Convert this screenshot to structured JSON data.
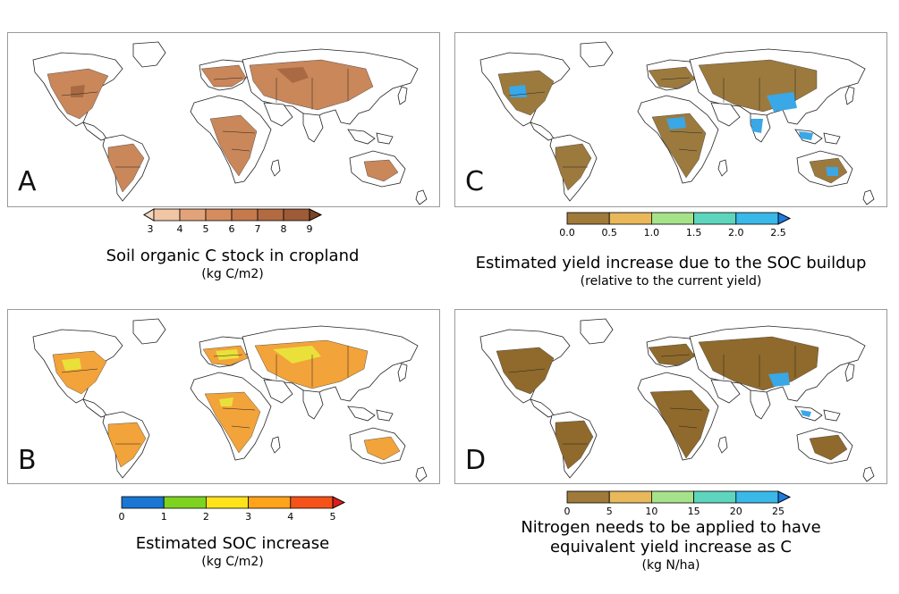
{
  "panels": {
    "A": {
      "letter": "A",
      "title": "Soil organic C stock in cropland",
      "unit": "(kg C/m2)",
      "colorbar": {
        "ticks": [
          "3",
          "4",
          "5",
          "6",
          "7",
          "8",
          "9"
        ],
        "colors": [
          "#f1c6a4",
          "#e3a37a",
          "#d58c5e",
          "#c57a4c",
          "#b26a41",
          "#9d5b37"
        ],
        "extend_low": "#f6d8bf",
        "extend_high": "#7a4525"
      }
    },
    "B": {
      "letter": "B",
      "title": "Estimated SOC increase",
      "unit": "(kg C/m2)",
      "colorbar": {
        "ticks": [
          "0",
          "1",
          "2",
          "3",
          "4",
          "5"
        ],
        "colors": [
          "#1976d2",
          "#7ed321",
          "#ffe31a",
          "#ffa31a",
          "#f5521a"
        ],
        "extend_high": "#e01b1b"
      }
    },
    "C": {
      "letter": "C",
      "title": "Estimated yield increase due to the SOC buildup",
      "unit": "(relative to the current yield)",
      "colorbar": {
        "ticks": [
          "0.0",
          "0.5",
          "1.0",
          "1.5",
          "2.0",
          "2.5"
        ],
        "colors": [
          "#a07a3a",
          "#e8b85a",
          "#a6e28a",
          "#5dd6bd",
          "#3ab8e8"
        ],
        "extend_high": "#1e7be0"
      }
    },
    "D": {
      "letter": "D",
      "title_line1": "Nitrogen needs to be applied to have",
      "title_line2": "equivalent yield increase as C",
      "unit": "(kg N/ha)",
      "colorbar": {
        "ticks": [
          "0",
          "5",
          "10",
          "15",
          "20",
          "25"
        ],
        "colors": [
          "#a07a3a",
          "#e8b85a",
          "#a6e28a",
          "#5dd6bd",
          "#3ab8e8"
        ],
        "extend_high": "#1e7be0"
      }
    }
  },
  "map_colors": {
    "A": {
      "fill": "#c9875a",
      "accent": "#a96a43"
    },
    "B": {
      "fill": "#f2a33a",
      "accent": "#e9e13a"
    },
    "C": {
      "fill": "#9c7a3e",
      "accent": "#3aa7e6"
    },
    "D": {
      "fill": "#8f6a2c",
      "accent": "#3aa7e6"
    }
  }
}
